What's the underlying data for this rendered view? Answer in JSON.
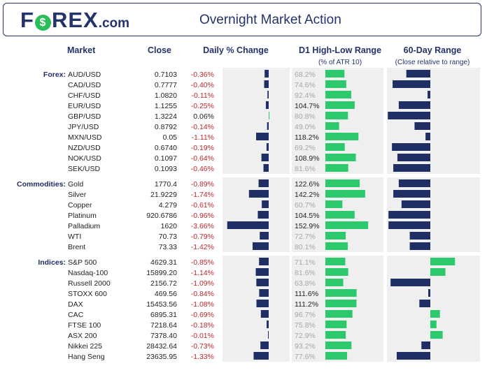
{
  "header": {
    "logo": {
      "brand": "FOREX",
      "suffix": ".com"
    },
    "title": "Overnight Market Action"
  },
  "columns": {
    "market": "Market",
    "close": "Close",
    "daily_change": "Daily % Change",
    "range": "D1 High-Low Range",
    "range_sub": "(% of ATR 10)",
    "sixty_day": "60-Day Range",
    "sixty_day_sub": "(Close relative to range)"
  },
  "colors": {
    "navy": "#1f2e63",
    "green": "#2bc96b",
    "red": "#c0282d",
    "panel": "#efefef",
    "muted": "#a6a6a6"
  },
  "chart_data": {
    "type": "table",
    "title": "Overnight Market Action",
    "change_range": [
      -3.66,
      0.06
    ],
    "atr_range": [
      0,
      160
    ],
    "sixty_day_range": [
      -1,
      1
    ],
    "groups": [
      {
        "label": "Forex:",
        "rows": [
          {
            "market": "AUD/USD",
            "close": "0.7103",
            "change": "-0.36%",
            "change_value": -0.36,
            "range": "68.2%",
            "range_value": 68.2,
            "sixty_day": -0.35
          },
          {
            "market": "CAD/USD",
            "close": "0.7777",
            "change": "-0.40%",
            "change_value": -0.4,
            "range": "74.6%",
            "range_value": 74.6,
            "sixty_day": -0.55
          },
          {
            "market": "CHF/USD",
            "close": "1.0820",
            "change": "-0.11%",
            "change_value": -0.11,
            "range": "92.4%",
            "range_value": 92.4,
            "sixty_day": -0.04
          },
          {
            "market": "EUR/USD",
            "close": "1.1255",
            "change": "-0.25%",
            "change_value": -0.25,
            "range": "104.7%",
            "range_value": 104.7,
            "sixty_day": -0.46
          },
          {
            "market": "GBP/USD",
            "close": "1.3224",
            "change": "0.06%",
            "change_value": 0.06,
            "range": "80.8%",
            "range_value": 80.8,
            "sixty_day": -0.62
          },
          {
            "market": "JPY/USD",
            "close": "0.8792",
            "change": "-0.14%",
            "change_value": -0.14,
            "range": "49.0%",
            "range_value": 49.0,
            "sixty_day": -0.23
          },
          {
            "market": "MXN/USD",
            "close": "0.05",
            "change": "-1.11%",
            "change_value": -1.11,
            "range": "118.2%",
            "range_value": 118.2,
            "sixty_day": -0.07
          },
          {
            "market": "NZD/USD",
            "close": "0.6740",
            "change": "-0.19%",
            "change_value": -0.19,
            "range": "69.2%",
            "range_value": 69.2,
            "sixty_day": -0.56
          },
          {
            "market": "NOK/USD",
            "close": "0.1097",
            "change": "-0.64%",
            "change_value": -0.64,
            "range": "108.9%",
            "range_value": 108.9,
            "sixty_day": -0.48
          },
          {
            "market": "SEK/USD",
            "close": "0.1093",
            "change": "-0.46%",
            "change_value": -0.46,
            "range": "81.6%",
            "range_value": 81.6,
            "sixty_day": -0.54
          }
        ]
      },
      {
        "label": "Commodities:",
        "rows": [
          {
            "market": "Gold",
            "close": "1770.4",
            "change": "-0.89%",
            "change_value": -0.89,
            "range": "122.6%",
            "range_value": 122.6,
            "sixty_day": -0.46
          },
          {
            "market": "Silver",
            "close": "21.9229",
            "change": "-1.74%",
            "change_value": -1.74,
            "range": "142.2%",
            "range_value": 142.2,
            "sixty_day": -0.54
          },
          {
            "market": "Copper",
            "close": "4.279",
            "change": "-0.61%",
            "change_value": -0.61,
            "range": "60.7%",
            "range_value": 60.7,
            "sixty_day": -0.42
          },
          {
            "market": "Platinum",
            "close": "920.6786",
            "change": "-0.96%",
            "change_value": -0.96,
            "range": "104.5%",
            "range_value": 104.5,
            "sixty_day": -0.61
          },
          {
            "market": "Palladium",
            "close": "1620",
            "change": "-3.66%",
            "change_value": -3.66,
            "range": "152.9%",
            "range_value": 152.9,
            "sixty_day": -0.61
          },
          {
            "market": "WTI",
            "close": "70.73",
            "change": "-0.79%",
            "change_value": -0.79,
            "range": "72.7%",
            "range_value": 72.7,
            "sixty_day": -0.3
          },
          {
            "market": "Brent",
            "close": "73.33",
            "change": "-1.42%",
            "change_value": -1.42,
            "range": "80.1%",
            "range_value": 80.1,
            "sixty_day": -0.3
          }
        ]
      },
      {
        "label": "Indices:",
        "rows": [
          {
            "market": "S&P 500",
            "close": "4629.31",
            "change": "-0.85%",
            "change_value": -0.85,
            "range": "71.1%",
            "range_value": 71.1,
            "sixty_day": 0.36
          },
          {
            "market": "Nasdaq-100",
            "close": "15899.20",
            "change": "-1.14%",
            "change_value": -1.14,
            "range": "81.6%",
            "range_value": 81.6,
            "sixty_day": 0.22
          },
          {
            "market": "Russell 2000",
            "close": "2156.72",
            "change": "-1.09%",
            "change_value": -1.09,
            "range": "63.8%",
            "range_value": 63.8,
            "sixty_day": -0.58
          },
          {
            "market": "STOXX 600",
            "close": "469.56",
            "change": "-0.84%",
            "change_value": -0.84,
            "range": "111.6%",
            "range_value": 111.6,
            "sixty_day": -0.03
          },
          {
            "market": "DAX",
            "close": "15453.56",
            "change": "-1.08%",
            "change_value": -1.08,
            "range": "111.2%",
            "range_value": 111.2,
            "sixty_day": -0.16
          },
          {
            "market": "CAC",
            "close": "6895.31",
            "change": "-0.69%",
            "change_value": -0.69,
            "range": "96.7%",
            "range_value": 96.7,
            "sixty_day": 0.14
          },
          {
            "market": "FTSE 100",
            "close": "7218.64",
            "change": "-0.18%",
            "change_value": -0.18,
            "range": "75.8%",
            "range_value": 75.8,
            "sixty_day": 0.09
          },
          {
            "market": "ASX 200",
            "close": "7378.40",
            "change": "-0.01%",
            "change_value": -0.01,
            "range": "72.9%",
            "range_value": 72.9,
            "sixty_day": 0.18
          },
          {
            "market": "Nikkei 225",
            "close": "28432.64",
            "change": "-0.73%",
            "change_value": -0.73,
            "range": "93.2%",
            "range_value": 93.2,
            "sixty_day": -0.13
          },
          {
            "market": "Hang Seng",
            "close": "23635.95",
            "change": "-1.33%",
            "change_value": -1.33,
            "range": "77.6%",
            "range_value": 77.6,
            "sixty_day": -0.49
          }
        ]
      }
    ]
  }
}
